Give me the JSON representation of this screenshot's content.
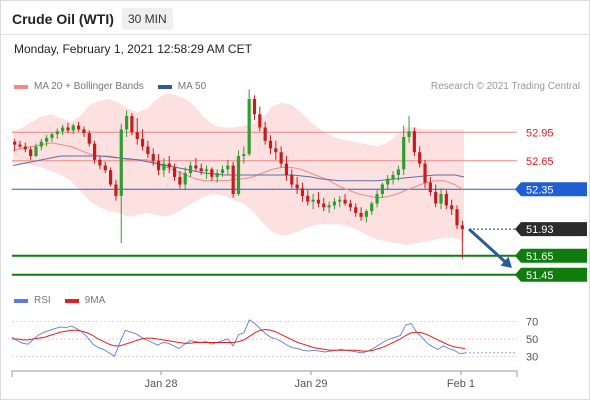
{
  "header": {
    "instrument": "Crude Oil (WTI)",
    "timeframe": "30 MIN"
  },
  "datetime": "Monday, February 1, 2021 12:58:29 AM CET",
  "legend": {
    "items": [
      {
        "label": "MA 20 + Bollinger Bands",
        "color": "#f08a8a"
      },
      {
        "label": "MA 50",
        "color": "#2d5b9a"
      }
    ],
    "credit": "Research © 2021 Trading Central"
  },
  "rsi_legend": {
    "items": [
      {
        "label": "RSI",
        "color": "#5b7fd6"
      },
      {
        "label": "9MA",
        "color": "#e02020"
      }
    ]
  },
  "colors": {
    "up_candle": "#2f9e2f",
    "down_candle": "#c41d1d",
    "band_fill": "#fde0e0",
    "ma20": "#e98b8b",
    "ma50": "#5a6fa8",
    "resistance": "#e88a8a",
    "pivot": "#1f5fd1",
    "support": "#0e7d0e",
    "current": "#2b2b2b",
    "arrow": "#2a5b9e"
  },
  "chart_data": [
    {
      "type": "candlestick",
      "title": "Crude Oil (WTI)",
      "timeframe": "30 MIN",
      "x_ticks": [
        "Jan 28",
        "Jan 29",
        "Feb 1"
      ],
      "ylim": [
        51.3,
        53.3
      ],
      "candles": [
        [
          52.85,
          52.88,
          52.75,
          52.82
        ],
        [
          52.82,
          52.86,
          52.78,
          52.8
        ],
        [
          52.8,
          52.84,
          52.74,
          52.77
        ],
        [
          52.77,
          52.8,
          52.66,
          52.7
        ],
        [
          52.7,
          52.83,
          52.69,
          52.8
        ],
        [
          52.8,
          52.88,
          52.76,
          52.85
        ],
        [
          52.85,
          52.92,
          52.8,
          52.89
        ],
        [
          52.89,
          52.95,
          52.85,
          52.93
        ],
        [
          52.93,
          52.99,
          52.88,
          52.96
        ],
        [
          52.96,
          53.03,
          52.92,
          53.0
        ],
        [
          53.0,
          53.05,
          52.94,
          52.97
        ],
        [
          52.97,
          53.04,
          52.93,
          53.02
        ],
        [
          53.02,
          53.06,
          52.96,
          52.98
        ],
        [
          52.98,
          53.01,
          52.9,
          52.94
        ],
        [
          52.94,
          52.97,
          52.8,
          52.83
        ],
        [
          52.83,
          52.86,
          52.62,
          52.66
        ],
        [
          52.66,
          52.7,
          52.56,
          52.6
        ],
        [
          52.6,
          52.64,
          52.52,
          52.55
        ],
        [
          52.55,
          52.58,
          52.38,
          52.4
        ],
        [
          52.4,
          52.45,
          52.23,
          52.28
        ],
        [
          52.28,
          53.04,
          51.78,
          52.98
        ],
        [
          52.98,
          53.18,
          52.9,
          53.12
        ],
        [
          53.12,
          53.15,
          52.92,
          52.95
        ],
        [
          52.95,
          53.1,
          52.82,
          52.88
        ],
        [
          52.88,
          52.98,
          52.76,
          52.8
        ],
        [
          52.8,
          52.86,
          52.68,
          52.72
        ],
        [
          52.72,
          52.78,
          52.6,
          52.65
        ],
        [
          52.65,
          52.72,
          52.5,
          52.55
        ],
        [
          52.55,
          52.68,
          52.48,
          52.62
        ],
        [
          52.62,
          52.7,
          52.52,
          52.58
        ],
        [
          52.58,
          52.62,
          52.44,
          52.48
        ],
        [
          52.48,
          52.54,
          52.36,
          52.4
        ],
        [
          52.4,
          52.58,
          52.34,
          52.52
        ],
        [
          52.52,
          52.64,
          52.48,
          52.6
        ],
        [
          52.6,
          52.68,
          52.54,
          52.57
        ],
        [
          52.57,
          52.62,
          52.5,
          52.54
        ],
        [
          52.54,
          52.6,
          52.46,
          52.56
        ],
        [
          52.56,
          52.58,
          52.44,
          52.48
        ],
        [
          52.48,
          52.56,
          52.42,
          52.52
        ],
        [
          52.52,
          52.6,
          52.48,
          52.56
        ],
        [
          52.56,
          52.66,
          52.5,
          52.6
        ],
        [
          52.6,
          52.64,
          52.26,
          52.3
        ],
        [
          52.3,
          52.76,
          52.28,
          52.7
        ],
        [
          52.7,
          52.8,
          52.62,
          52.72
        ],
        [
          52.72,
          53.4,
          52.7,
          53.3
        ],
        [
          53.3,
          53.34,
          53.08,
          53.14
        ],
        [
          53.14,
          53.22,
          52.96,
          53.0
        ],
        [
          53.0,
          53.06,
          52.82,
          52.86
        ],
        [
          52.86,
          52.92,
          52.72,
          52.78
        ],
        [
          52.78,
          52.86,
          52.66,
          52.74
        ],
        [
          52.74,
          52.8,
          52.58,
          52.62
        ],
        [
          52.62,
          52.7,
          52.44,
          52.5
        ],
        [
          52.5,
          52.56,
          52.36,
          52.4
        ],
        [
          52.4,
          52.48,
          52.3,
          52.36
        ],
        [
          52.36,
          52.42,
          52.22,
          52.28
        ],
        [
          52.28,
          52.34,
          52.18,
          52.22
        ],
        [
          52.22,
          52.3,
          52.14,
          52.24
        ],
        [
          52.24,
          52.32,
          52.16,
          52.2
        ],
        [
          52.2,
          52.26,
          52.12,
          52.16
        ],
        [
          52.16,
          52.22,
          52.1,
          52.18
        ],
        [
          52.18,
          52.26,
          52.14,
          52.22
        ],
        [
          52.22,
          52.28,
          52.16,
          52.24
        ],
        [
          52.24,
          52.3,
          52.18,
          52.2
        ],
        [
          52.2,
          52.24,
          52.12,
          52.16
        ],
        [
          52.16,
          52.2,
          52.06,
          52.1
        ],
        [
          52.1,
          52.16,
          52.02,
          52.06
        ],
        [
          52.06,
          52.14,
          52.0,
          52.12
        ],
        [
          52.12,
          52.22,
          52.08,
          52.2
        ],
        [
          52.2,
          52.34,
          52.16,
          52.3
        ],
        [
          52.3,
          52.42,
          52.26,
          52.4
        ],
        [
          52.4,
          52.5,
          52.34,
          52.46
        ],
        [
          52.46,
          52.54,
          52.4,
          52.5
        ],
        [
          52.5,
          52.6,
          52.44,
          52.56
        ],
        [
          52.56,
          53.02,
          52.5,
          52.9
        ],
        [
          52.9,
          53.12,
          52.84,
          52.96
        ],
        [
          52.96,
          53.0,
          52.7,
          52.74
        ],
        [
          52.74,
          52.8,
          52.58,
          52.62
        ],
        [
          52.62,
          52.66,
          52.36,
          52.42
        ],
        [
          52.42,
          52.48,
          52.28,
          52.32
        ],
        [
          52.32,
          52.4,
          52.16,
          52.2
        ],
        [
          52.2,
          52.36,
          52.14,
          52.3
        ],
        [
          52.3,
          52.34,
          52.14,
          52.18
        ],
        [
          52.18,
          52.24,
          52.08,
          52.14
        ],
        [
          52.14,
          52.18,
          51.93,
          51.97
        ],
        [
          51.97,
          52.02,
          51.62,
          51.93
        ]
      ],
      "ma20": [
        52.76,
        52.78,
        52.8,
        52.82,
        52.84,
        52.82,
        52.8,
        52.76,
        52.72,
        52.7,
        52.7,
        52.68,
        52.66,
        52.66,
        52.66,
        52.62,
        52.58,
        52.54,
        52.5,
        52.46,
        52.44,
        52.44,
        52.44,
        52.45,
        52.46,
        52.48,
        52.52,
        52.56,
        52.58,
        52.58,
        52.56,
        52.52,
        52.48,
        52.44,
        52.38,
        52.34,
        52.3,
        52.28,
        52.26,
        52.27,
        52.3,
        52.34,
        52.38,
        52.42,
        52.44,
        52.44,
        52.4,
        52.34
      ],
      "ma50": [
        52.6,
        52.62,
        52.64,
        52.66,
        52.68,
        52.7,
        52.7,
        52.7,
        52.7,
        52.7,
        52.69,
        52.68,
        52.67,
        52.66,
        52.64,
        52.62,
        52.6,
        52.58,
        52.56,
        52.54,
        52.52,
        52.51,
        52.5,
        52.5,
        52.5,
        52.5,
        52.5,
        52.5,
        52.5,
        52.5,
        52.49,
        52.48,
        52.46,
        52.45,
        52.44,
        52.44,
        52.44,
        52.44,
        52.44,
        52.45,
        52.46,
        52.47,
        52.48,
        52.49,
        52.5,
        52.5,
        52.5,
        52.48
      ],
      "bb_upper": [
        52.96,
        53.0,
        53.06,
        53.12,
        53.14,
        53.1,
        53.06,
        53.12,
        53.24,
        53.28,
        53.3,
        53.26,
        53.2,
        53.16,
        53.2,
        53.3,
        53.36,
        53.34,
        53.3,
        53.22,
        53.1,
        53.02,
        53.0,
        53.0,
        53.02,
        53.04,
        53.1,
        53.22,
        53.26,
        53.24,
        53.16,
        53.06,
        52.98,
        52.92,
        52.88,
        52.86,
        52.84,
        52.82,
        52.8,
        52.84,
        52.92,
        53.0,
        53.0,
        52.98,
        52.98,
        52.98,
        52.98,
        52.98
      ],
      "bb_lower": [
        52.62,
        52.62,
        52.6,
        52.58,
        52.54,
        52.5,
        52.44,
        52.34,
        52.22,
        52.16,
        52.12,
        52.1,
        52.06,
        52.08,
        52.1,
        52.08,
        52.06,
        52.1,
        52.16,
        52.22,
        52.28,
        52.3,
        52.28,
        52.24,
        52.2,
        52.12,
        52.0,
        51.9,
        51.86,
        51.88,
        51.92,
        51.96,
        51.98,
        51.98,
        51.98,
        51.96,
        51.92,
        51.86,
        51.82,
        51.8,
        51.78,
        51.76,
        51.78,
        51.8,
        51.82,
        51.84,
        51.84,
        51.8
      ],
      "levels": [
        {
          "price": 52.95,
          "label": "52.95",
          "kind": "resistance"
        },
        {
          "price": 52.65,
          "label": "52.65",
          "kind": "resistance"
        },
        {
          "price": 52.35,
          "label": "52.35",
          "kind": "pivot"
        },
        {
          "price": 51.93,
          "label": "51.93",
          "kind": "current"
        },
        {
          "price": 51.65,
          "label": "51.65",
          "kind": "support"
        },
        {
          "price": 51.45,
          "label": "51.45",
          "kind": "support"
        }
      ],
      "projection": {
        "from_price": 51.93,
        "to_price": 51.55,
        "direction": "down"
      }
    },
    {
      "type": "line",
      "title": "RSI",
      "y_ticks": [
        70,
        50,
        30
      ],
      "ylim": [
        20,
        80
      ],
      "series": [
        {
          "name": "RSI",
          "values": [
            52,
            48,
            45,
            44,
            50,
            55,
            58,
            60,
            62,
            64,
            63,
            65,
            62,
            58,
            52,
            44,
            40,
            38,
            34,
            30,
            46,
            60,
            58,
            56,
            52,
            49,
            46,
            43,
            46,
            45,
            42,
            39,
            44,
            48,
            47,
            46,
            47,
            44,
            46,
            48,
            50,
            42,
            55,
            57,
            72,
            68,
            62,
            56,
            52,
            50,
            47,
            43,
            40,
            39,
            37,
            36,
            37,
            36,
            35,
            36,
            37,
            38,
            37,
            36,
            35,
            34,
            36,
            39,
            43,
            47,
            50,
            52,
            54,
            66,
            68,
            58,
            52,
            45,
            41,
            38,
            42,
            39,
            37,
            33,
            34
          ]
        },
        {
          "name": "9MA",
          "values": [
            50,
            50,
            49,
            49,
            50,
            51,
            52,
            54,
            56,
            58,
            59,
            60,
            60,
            59,
            57,
            54,
            50,
            47,
            44,
            42,
            42,
            44,
            46,
            48,
            50,
            51,
            51,
            50,
            49,
            48,
            47,
            46,
            45,
            45,
            46,
            46,
            46,
            46,
            46,
            46,
            46,
            46,
            47,
            49,
            53,
            57,
            60,
            61,
            60,
            58,
            55,
            52,
            49,
            46,
            44,
            42,
            40,
            39,
            38,
            37,
            37,
            37,
            37,
            37,
            37,
            36,
            36,
            37,
            39,
            41,
            44,
            47,
            50,
            54,
            57,
            58,
            57,
            55,
            52,
            49,
            46,
            43,
            41,
            40,
            39
          ]
        }
      ]
    }
  ]
}
